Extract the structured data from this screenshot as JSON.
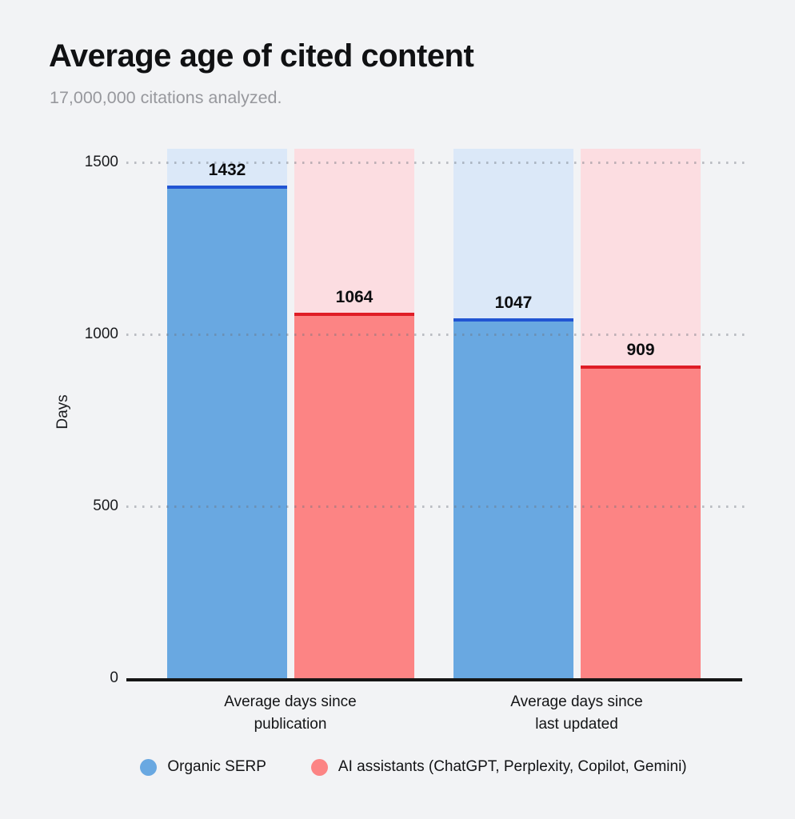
{
  "header": {
    "title": "Average age of cited content",
    "subtitle": "17,000,000 citations analyzed."
  },
  "chart_data": {
    "type": "bar",
    "title": "Average age of cited content",
    "subtitle": "17,000,000 citations analyzed.",
    "categories": [
      "Average days since publication",
      "Average days since last updated"
    ],
    "series": [
      {
        "name": "Organic SERP",
        "values": [
          1432,
          1047
        ],
        "bar_color": "#69a8e1",
        "track_color": "#dbe8f8",
        "cap_color": "#2155d3"
      },
      {
        "name": "AI assistants (ChatGPT, Perplexity, Copilot, Gemini)",
        "values": [
          1064,
          909
        ],
        "bar_color": "#fc8484",
        "track_color": "#fcdde1",
        "cap_color": "#df1d26"
      }
    ],
    "xlabel": "",
    "ylabel": "Days",
    "yticks": [
      0,
      500,
      1000,
      1500
    ],
    "ylim": [
      0,
      1540
    ],
    "grid": "horizontal-dotted-over-bars",
    "value_labels": true,
    "legend_position": "bottom"
  },
  "legend": {
    "items": [
      {
        "label": "Organic SERP",
        "color": "#69a8e1"
      },
      {
        "label": "AI assistants (ChatGPT, Perplexity, Copilot, Gemini)",
        "color": "#fc8484"
      }
    ]
  },
  "colors": {
    "background": "#f2f3f5",
    "axis": "#151515",
    "title": "#101113",
    "subtitle": "#97989d"
  }
}
